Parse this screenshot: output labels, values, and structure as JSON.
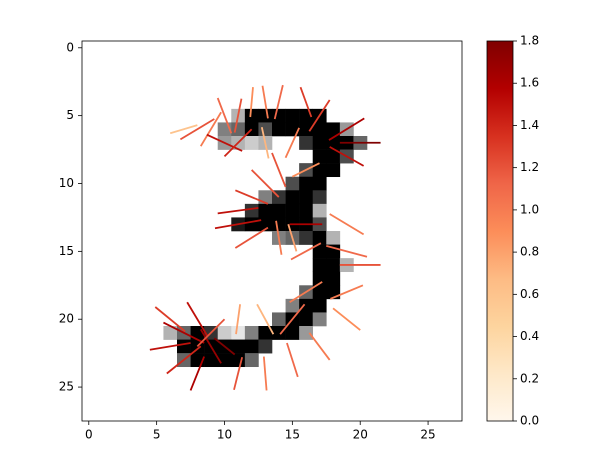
{
  "chart_data": {
    "type": "image",
    "xlim": [
      -0.5,
      27.5
    ],
    "ylim": [
      27.5,
      -0.5
    ],
    "xticks": [
      0,
      5,
      10,
      15,
      20,
      25
    ],
    "yticks": [
      0,
      5,
      10,
      15,
      20,
      25
    ],
    "clim": [
      0,
      1.8
    ],
    "cticks": [
      {
        "value": 0,
        "label": "0.0"
      },
      {
        "value": 0.2,
        "label": "0.2"
      },
      {
        "value": 0.4,
        "label": "0.4"
      },
      {
        "value": 0.6,
        "label": "0.6"
      },
      {
        "value": 0.8,
        "label": "0.8"
      },
      {
        "value": 1.0,
        "label": "1.0"
      },
      {
        "value": 1.2,
        "label": "1.2"
      },
      {
        "value": 1.4,
        "label": "1.4"
      },
      {
        "value": 1.6,
        "label": "1.6"
      },
      {
        "value": 1.8,
        "label": "1.8"
      }
    ],
    "colormap": [
      "#fff7ec",
      "#fee8c8",
      "#fdd49e",
      "#fdbb84",
      "#fc8d59",
      "#ef6548",
      "#d7301f",
      "#b30000",
      "#7f0000"
    ],
    "pixels": [
      [
        5,
        11,
        0.3
      ],
      [
        5,
        12,
        1
      ],
      [
        5,
        13,
        1
      ],
      [
        5,
        14,
        1
      ],
      [
        5,
        15,
        1
      ],
      [
        5,
        16,
        1
      ],
      [
        5,
        17,
        1
      ],
      [
        6,
        10,
        0.5
      ],
      [
        6,
        11,
        0.6
      ],
      [
        6,
        12,
        1
      ],
      [
        6,
        13,
        0.7
      ],
      [
        6,
        14,
        1
      ],
      [
        6,
        15,
        1
      ],
      [
        6,
        16,
        1
      ],
      [
        6,
        17,
        1
      ],
      [
        6,
        18,
        1
      ],
      [
        6,
        19,
        0.4
      ],
      [
        7,
        10,
        0.4
      ],
      [
        7,
        11,
        0.3
      ],
      [
        7,
        12,
        0.2
      ],
      [
        7,
        13,
        0.3
      ],
      [
        7,
        16,
        0.8
      ],
      [
        7,
        17,
        1
      ],
      [
        7,
        18,
        1
      ],
      [
        7,
        19,
        1
      ],
      [
        7,
        20,
        0.6
      ],
      [
        8,
        17,
        1
      ],
      [
        8,
        18,
        1
      ],
      [
        8,
        19,
        0.7
      ],
      [
        9,
        16,
        0.7
      ],
      [
        9,
        17,
        1
      ],
      [
        9,
        18,
        1
      ],
      [
        10,
        15,
        0.7
      ],
      [
        10,
        16,
        1
      ],
      [
        10,
        17,
        1
      ],
      [
        11,
        13,
        0.5
      ],
      [
        11,
        14,
        0.8
      ],
      [
        11,
        15,
        1
      ],
      [
        11,
        16,
        1
      ],
      [
        11,
        17,
        0.8
      ],
      [
        12,
        12,
        0.8
      ],
      [
        12,
        13,
        1
      ],
      [
        12,
        14,
        1
      ],
      [
        12,
        15,
        1
      ],
      [
        12,
        16,
        1
      ],
      [
        12,
        17,
        0.3
      ],
      [
        13,
        11,
        0.9
      ],
      [
        13,
        12,
        1
      ],
      [
        13,
        13,
        1
      ],
      [
        13,
        14,
        1
      ],
      [
        13,
        15,
        1
      ],
      [
        13,
        16,
        1
      ],
      [
        13,
        17,
        0.7
      ],
      [
        14,
        14,
        0.5
      ],
      [
        14,
        15,
        0.6
      ],
      [
        14,
        16,
        0.8
      ],
      [
        14,
        17,
        1
      ],
      [
        14,
        18,
        0.3
      ],
      [
        15,
        17,
        1
      ],
      [
        15,
        18,
        1
      ],
      [
        16,
        17,
        1
      ],
      [
        16,
        18,
        1
      ],
      [
        16,
        19,
        0.3
      ],
      [
        17,
        17,
        1
      ],
      [
        17,
        18,
        1
      ],
      [
        18,
        16,
        0.6
      ],
      [
        18,
        17,
        1
      ],
      [
        18,
        18,
        1
      ],
      [
        19,
        15,
        0.5
      ],
      [
        19,
        16,
        1
      ],
      [
        19,
        17,
        1
      ],
      [
        20,
        14,
        0.6
      ],
      [
        20,
        15,
        1
      ],
      [
        20,
        16,
        1
      ],
      [
        20,
        17,
        0.5
      ],
      [
        21,
        6,
        0.3
      ],
      [
        21,
        7,
        0.6
      ],
      [
        21,
        8,
        1
      ],
      [
        21,
        9,
        0.8
      ],
      [
        21,
        10,
        0.2
      ],
      [
        21,
        11,
        0.1
      ],
      [
        21,
        12,
        0.5
      ],
      [
        21,
        13,
        1
      ],
      [
        21,
        14,
        1
      ],
      [
        21,
        15,
        1
      ],
      [
        21,
        16,
        0.4
      ],
      [
        22,
        7,
        1
      ],
      [
        22,
        8,
        1
      ],
      [
        22,
        9,
        1
      ],
      [
        22,
        10,
        1
      ],
      [
        22,
        11,
        1
      ],
      [
        22,
        12,
        1
      ],
      [
        22,
        13,
        0.8
      ],
      [
        23,
        7,
        0.6
      ],
      [
        23,
        8,
        1
      ],
      [
        23,
        9,
        1
      ],
      [
        23,
        10,
        1
      ],
      [
        23,
        11,
        1
      ],
      [
        23,
        12,
        0.6
      ]
    ],
    "quiver": [
      [
        7,
        6,
        -2,
        0.6,
        0.6
      ],
      [
        8,
        6,
        -2.5,
        1.5,
        1.2
      ],
      [
        9,
        6,
        -1.5,
        2.5,
        1.0
      ],
      [
        10,
        5,
        -1,
        -2.6,
        1.1
      ],
      [
        11,
        5,
        0.5,
        -2.5,
        1.2
      ],
      [
        12,
        4,
        0.2,
        -2.2,
        0.9
      ],
      [
        13,
        4,
        -0.4,
        -2.4,
        1.0
      ],
      [
        14,
        4,
        0.6,
        -2.5,
        1.1
      ],
      [
        16,
        4,
        -0.8,
        -2.2,
        1.3
      ],
      [
        17,
        5,
        1.5,
        -2.3,
        1.3
      ],
      [
        19,
        6,
        2.6,
        -1.6,
        1.6
      ],
      [
        20,
        7,
        3,
        0,
        1.8
      ],
      [
        19,
        8,
        2.5,
        1.4,
        1.5
      ],
      [
        10,
        7,
        -2.6,
        -1.2,
        1.5
      ],
      [
        11,
        7,
        -2,
        2,
        1.4
      ],
      [
        13,
        7,
        0.5,
        2.3,
        0.7
      ],
      [
        15,
        7,
        -1,
        2.2,
        1.0
      ],
      [
        16,
        9,
        -2,
        1,
        0.9
      ],
      [
        14,
        9,
        -1,
        -2.5,
        1.2
      ],
      [
        13,
        10,
        -2,
        -2,
        1.2
      ],
      [
        12,
        11,
        -2.4,
        -1,
        1.3
      ],
      [
        11,
        12,
        -3,
        0.4,
        1.5
      ],
      [
        11,
        13,
        -3.4,
        0.6,
        1.5
      ],
      [
        12,
        14,
        -2.4,
        1.5,
        1.2
      ],
      [
        14,
        14,
        0.4,
        2.5,
        1.0
      ],
      [
        15,
        14,
        0.6,
        2,
        0.8
      ],
      [
        16,
        15,
        -2.2,
        1.2,
        1.1
      ],
      [
        19,
        13,
        2.5,
        1.5,
        1.0
      ],
      [
        19,
        15,
        3,
        0.8,
        1.1
      ],
      [
        20,
        16,
        3,
        0,
        1.2
      ],
      [
        19,
        18,
        2.4,
        -1,
        1.0
      ],
      [
        16,
        13,
        -2.4,
        0,
        1.6
      ],
      [
        16,
        18,
        -2.4,
        1.5,
        1.0
      ],
      [
        19,
        20,
        2,
        1.6,
        0.9
      ],
      [
        15,
        20,
        -1.8,
        2.2,
        1.1
      ],
      [
        17,
        22,
        1.5,
        2,
        1.0
      ],
      [
        15,
        23,
        0.8,
        2.5,
        1.1
      ],
      [
        13,
        24,
        0.2,
        2.5,
        1.0
      ],
      [
        11,
        24,
        -0.6,
        2.4,
        1.2
      ],
      [
        13,
        20,
        -1.2,
        -2.2,
        0.7
      ],
      [
        11,
        20,
        0.3,
        -2.2,
        0.8
      ],
      [
        8,
        20,
        -1.5,
        -2.5,
        1.5
      ],
      [
        7,
        21,
        -3,
        -1.5,
        1.6
      ],
      [
        6,
        22,
        -3,
        0.5,
        1.5
      ],
      [
        7,
        23,
        -2.5,
        2,
        1.4
      ],
      [
        8,
        24,
        -1,
        2.5,
        1.6
      ],
      [
        9,
        22,
        1.5,
        2.5,
        1.7
      ],
      [
        9,
        21,
        2,
        -2,
        1.2
      ],
      [
        10,
        22,
        -1.5,
        -1.2,
        1.8
      ],
      [
        6,
        20,
        -2.2,
        -1.8,
        1.3
      ]
    ]
  }
}
